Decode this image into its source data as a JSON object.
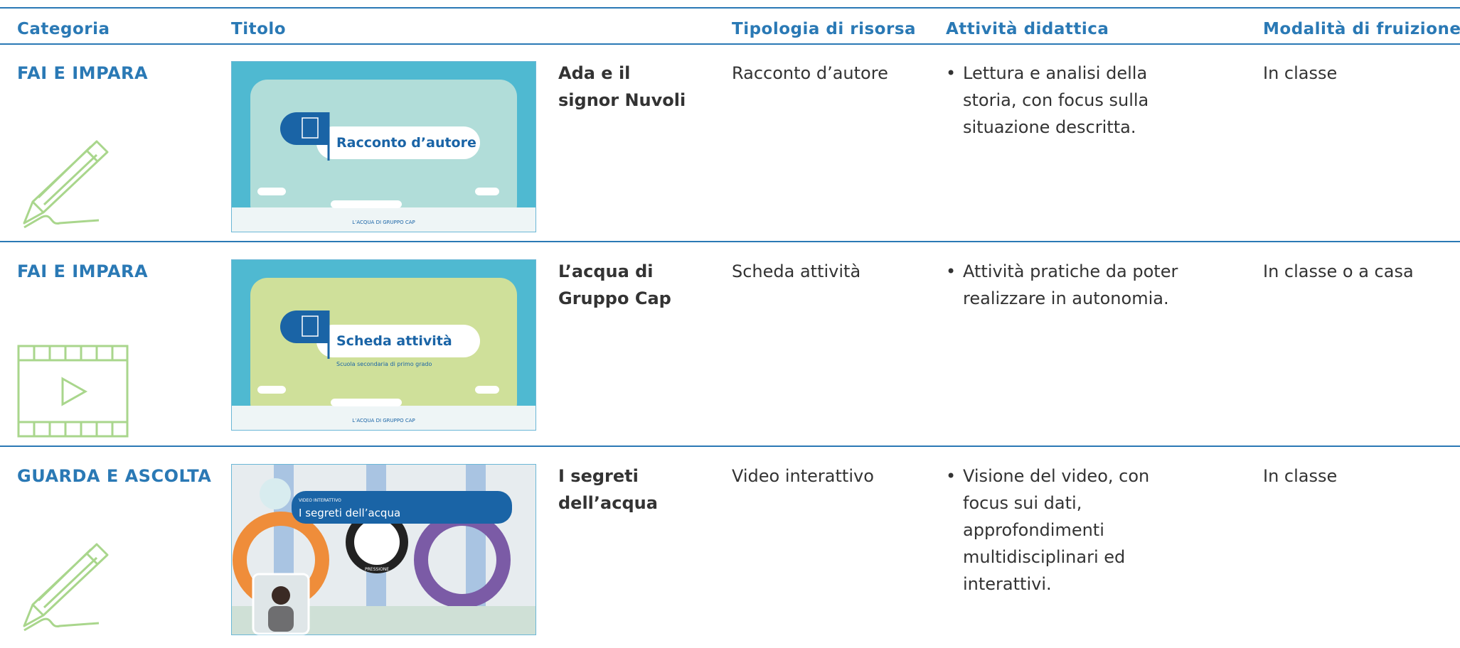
{
  "table": {
    "headers": [
      "Categoria",
      "Titolo",
      "Tipologia di risorsa",
      "Attività didattica",
      "Modalità di fruizione"
    ],
    "rows": [
      {
        "category": "FAI E IMPARA",
        "icon": "pencil",
        "thumbnail": {
          "style": "story",
          "label": "Racconto d’autore",
          "footer": "L’ACQUA DI GRUPPO CAP"
        },
        "title": "Ada e il signor Nuvoli",
        "type": "Racconto d’autore",
        "activity": "Lettura e analisi della storia, con focus sulla situazione descritta.",
        "mode": "In classe"
      },
      {
        "category": "FAI E IMPARA",
        "icon": "film",
        "thumbnail": {
          "style": "sheet",
          "label": "Scheda attività",
          "subtitle": "Scuola secondaria di primo grado",
          "footer": "L’ACQUA DI GRUPPO CAP"
        },
        "title": "L’acqua di Gruppo Cap",
        "type": "Scheda attività",
        "activity": "Attività pratiche da poter realizzare in autonomia.",
        "mode": "In classe o a casa"
      },
      {
        "category": "GUARDA E ASCOLTA",
        "icon": "pencil",
        "thumbnail": {
          "style": "video",
          "kicker": "VIDEO INTERATTIVO",
          "label": "I segreti dell’acqua",
          "gauge": "PRESSIONE"
        },
        "title": "I segreti dell’acqua",
        "type": "Video interattivo",
        "activity": "Visione del video, con focus sui dati, approfondimenti multidisciplinari ed interattivi.",
        "mode": "In classe"
      }
    ]
  }
}
